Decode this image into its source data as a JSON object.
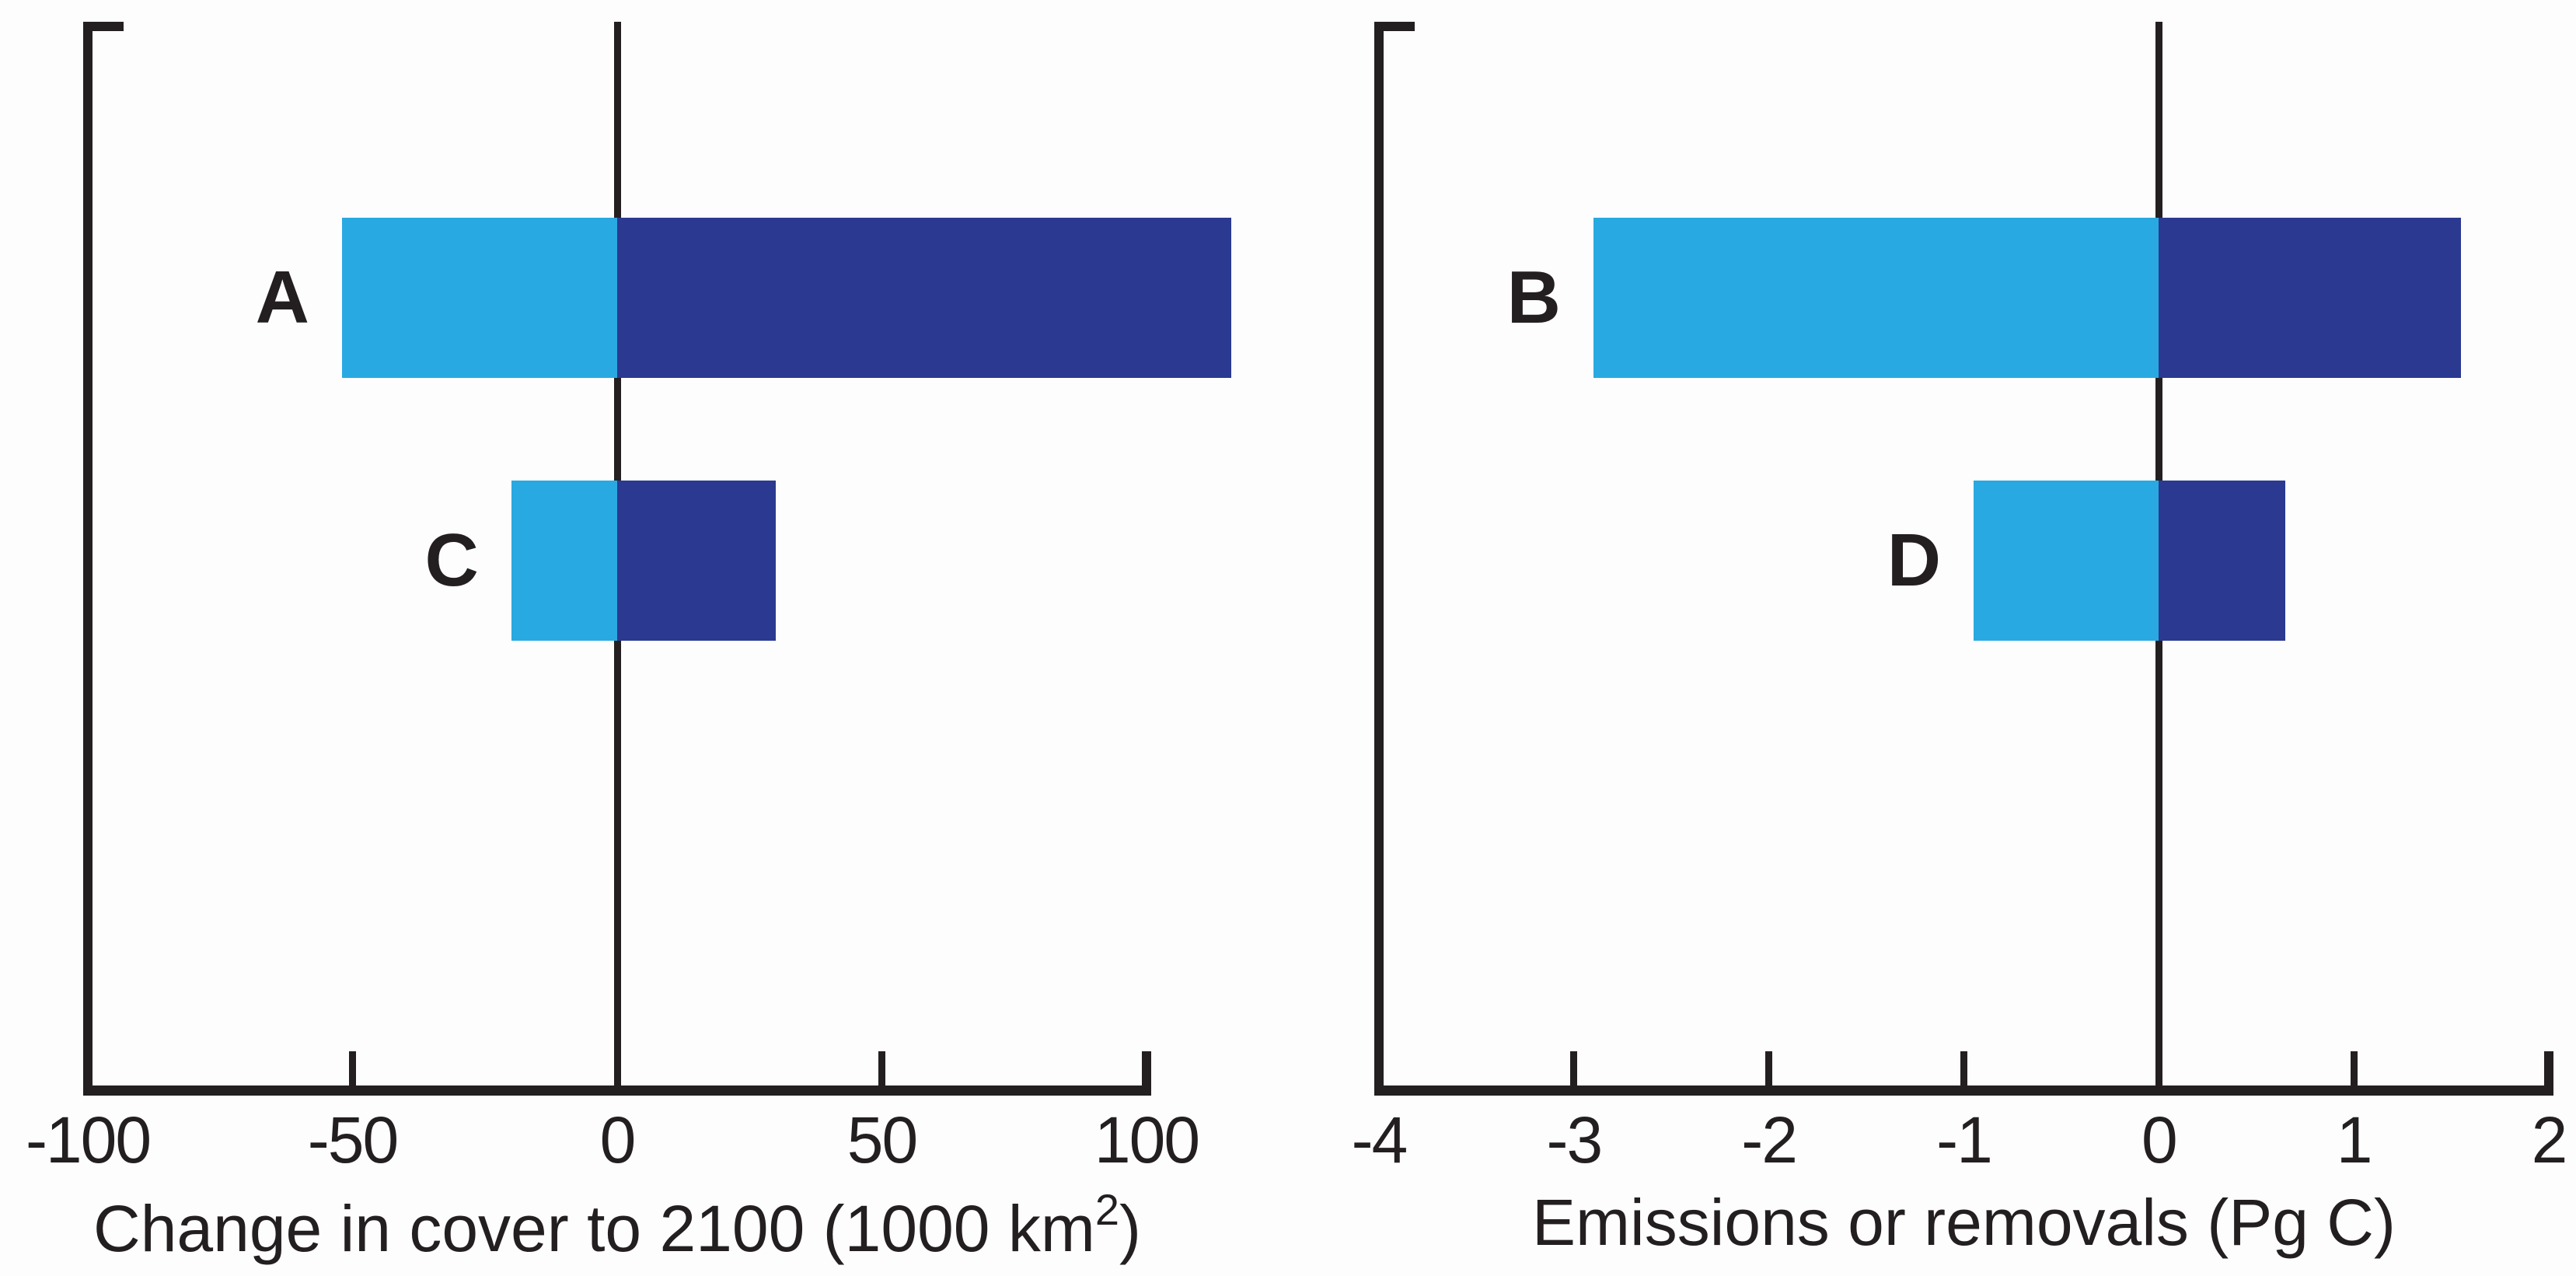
{
  "figure": {
    "background": "#FDFDFE",
    "line_color": "#231F20",
    "text_color": "#231F20"
  },
  "chart_data": [
    {
      "type": "bar",
      "orientation": "horizontal",
      "panel": "left",
      "categories": [
        "A",
        "C"
      ],
      "series": [
        {
          "name": "light-blue-segment",
          "color": "#29A9E1",
          "values": [
            -52,
            -20
          ]
        },
        {
          "name": "dark-blue-segment",
          "color": "#2B3990",
          "values": [
            116,
            30
          ]
        }
      ],
      "xlabel_pre": "Change in cover to 2100 (1000 km",
      "xlabel_sup": "2",
      "xlabel_post": ")",
      "xticks": [
        -100,
        -50,
        0,
        50,
        100
      ],
      "xtick_labels": [
        "-100",
        "-50",
        "0",
        "50",
        "100"
      ],
      "xlim": [
        -100,
        100
      ],
      "grid": false,
      "legend": "none",
      "zero_line": true
    },
    {
      "type": "bar",
      "orientation": "horizontal",
      "panel": "right",
      "categories": [
        "B",
        "D"
      ],
      "series": [
        {
          "name": "light-blue-segment",
          "color": "#29A9E1",
          "values": [
            -2.9,
            -0.95
          ]
        },
        {
          "name": "dark-blue-segment",
          "color": "#2B3990",
          "values": [
            1.55,
            0.65
          ]
        }
      ],
      "xlabel_pre": "Emissions or removals (Pg C)",
      "xlabel_sup": "",
      "xlabel_post": "",
      "xticks": [
        -4,
        -3,
        -2,
        -1,
        0,
        1,
        2
      ],
      "xtick_labels": [
        "-4",
        "-3",
        "-2",
        "-1",
        "0",
        "1",
        "2"
      ],
      "xlim": [
        -4,
        2
      ],
      "grid": false,
      "legend": "none",
      "zero_line": true
    }
  ]
}
